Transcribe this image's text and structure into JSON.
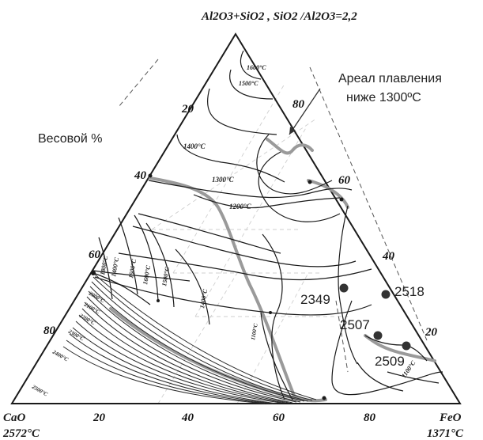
{
  "diagram": {
    "apex_top": {
      "formula": "Al2O3+SiO2 , SiO2 /Al2O3=2,2"
    },
    "apex_left": {
      "compound": "CaO",
      "temperature": "2572°C"
    },
    "apex_right": {
      "compound": "FeO",
      "temperature": "1371°C"
    },
    "unit_label": "Весовой %",
    "annotation": {
      "line1": "Ареал плавления",
      "line2": "ниже 1300ºC"
    },
    "left_ticks": [
      "20",
      "40",
      "60",
      "80"
    ],
    "right_ticks": [
      "80",
      "60",
      "40",
      "20"
    ],
    "bottom_ticks": [
      "20",
      "40",
      "60",
      "80"
    ],
    "isotherms": [
      "1600°C",
      "1500°C",
      "1400°C",
      "1300°C",
      "1200°C",
      "1400°C",
      "1500°C",
      "1600°C",
      "1500°C",
      "1400°C",
      "1100°C",
      "1100°C",
      "2000°C",
      "2100°C",
      "2200°C",
      "2300°C",
      "2400°C",
      "2500°C",
      "1800°C"
    ],
    "samples": [
      {
        "id": "2349"
      },
      {
        "id": "2518"
      },
      {
        "id": "2507"
      },
      {
        "id": "2509"
      }
    ],
    "colors": {
      "line": "#1a1a1a",
      "boundary": "#9a9a9a",
      "grid": "#c8c8c8",
      "point": "#333333"
    }
  }
}
